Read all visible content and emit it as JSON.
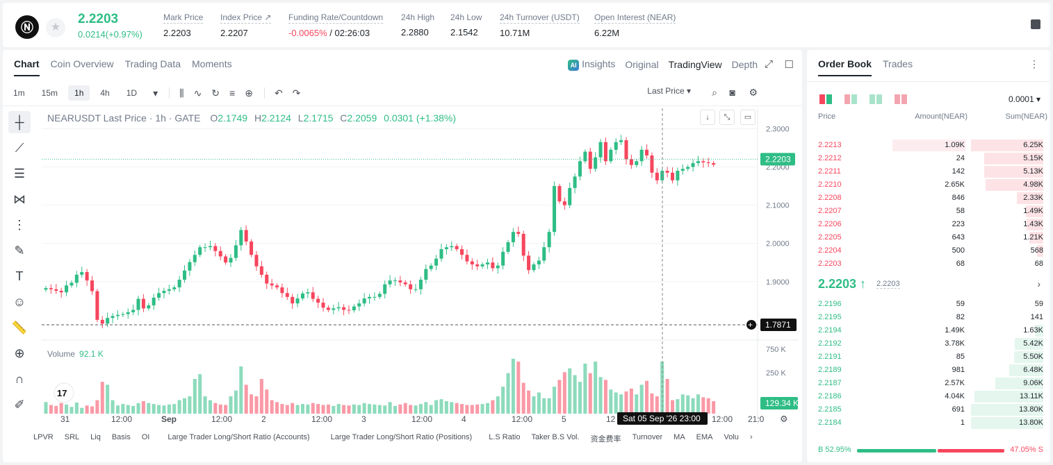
{
  "header": {
    "last_price": "2.2203",
    "change": "0.0214(+0.97%)",
    "stats": [
      {
        "label": "Mark Price",
        "value": "2.2203"
      },
      {
        "label": "Index Price ↗",
        "value": "2.2207"
      },
      {
        "label": "Funding Rate/Countdown",
        "value_neg": "-0.0065%",
        "value": " / 02:26:03"
      },
      {
        "label": "24h High",
        "value": "2.2880"
      },
      {
        "label": "24h Low",
        "value": "2.1542"
      },
      {
        "label": "24h Turnover (USDT)",
        "value": "10.71M"
      },
      {
        "label": "Open Interest (NEAR)",
        "value": "6.22M"
      }
    ]
  },
  "chart_tabs": [
    "Chart",
    "Coin Overview",
    "Trading Data",
    "Moments"
  ],
  "chart_views": [
    "Insights",
    "Original",
    "TradingView",
    "Depth"
  ],
  "timeframes": [
    "1m",
    "15m",
    "1h",
    "4h",
    "1D"
  ],
  "price_type": "Last Price ▾",
  "legend": {
    "symbol": "NEARUSDT Last Price · 1h · GATE",
    "o_label": "O",
    "o": "2.1749",
    "h_label": "H",
    "h": "2.2124",
    "l_label": "L",
    "l": "2.1715",
    "c_label": "C",
    "c": "2.2059",
    "chg": "0.0301 (+1.38%)"
  },
  "volume_legend": {
    "label": "Volume",
    "value": "92.1 K"
  },
  "bottom_indicators": [
    "LPVR",
    "SRL",
    "Liq",
    "Basis",
    "OI",
    "Large Trader Long/Short Ratio (Accounts)",
    "Large Trader Long/Short Ratio (Positions)",
    "L.S Ratio",
    "Taker B.S Vol.",
    "资金费率",
    "Turnover",
    "MA",
    "EMA",
    "Volu"
  ],
  "chart_data": {
    "type": "candlestick",
    "symbol": "NEARUSDT",
    "interval": "1h",
    "y_ticks": [
      "2.3000",
      "2.2000",
      "2.1000",
      "2.0000",
      "1.9000",
      "1.7871"
    ],
    "vol_ticks": [
      "750 K",
      "250 K"
    ],
    "x_ticks": [
      "31",
      "12:00",
      "Sep",
      "12:00",
      "2",
      "12:00",
      "3",
      "12:00",
      "4",
      "12:00",
      "5",
      "12",
      "12:00",
      "21:0"
    ],
    "price_label": "2.2203",
    "crosshair_price": "1.7871",
    "crosshair_time": "Sat 05 Sep '26   23:00",
    "volume_last": "129.34 K",
    "close_path": [
      1.883,
      1.88,
      1.876,
      1.872,
      1.89,
      1.897,
      1.918,
      1.925,
      1.903,
      1.875,
      1.8,
      1.79,
      1.805,
      1.81,
      1.813,
      1.815,
      1.82,
      1.826,
      1.855,
      1.83,
      1.838,
      1.858,
      1.87,
      1.876,
      1.88,
      1.885,
      1.905,
      1.929,
      1.951,
      1.97,
      1.99,
      1.99,
      1.993,
      1.98,
      1.966,
      1.95,
      1.962,
      1.995,
      2.035,
      2.005,
      1.97,
      1.94,
      1.918,
      1.895,
      1.89,
      1.885,
      1.87,
      1.86,
      1.843,
      1.856,
      1.869,
      1.872,
      1.855,
      1.845,
      1.832,
      1.826,
      1.83,
      1.833,
      1.826,
      1.825,
      1.835,
      1.843,
      1.856,
      1.86,
      1.86,
      1.868,
      1.893,
      1.903,
      1.903,
      1.898,
      1.893,
      1.88,
      1.88,
      1.905,
      1.933,
      1.942,
      1.96,
      1.985,
      1.99,
      1.993,
      1.985,
      1.97,
      1.953,
      1.945,
      1.94,
      1.945,
      1.95,
      1.935,
      1.942,
      1.978,
      2.003,
      2.03,
      2.025,
      1.968,
      1.93,
      1.945,
      1.955,
      1.99,
      2.03,
      2.15,
      2.11,
      2.1,
      2.145,
      2.175,
      2.215,
      2.24,
      2.195,
      2.225,
      2.265,
      2.215,
      2.245,
      2.265,
      2.27,
      2.22,
      2.205,
      2.215,
      2.245,
      2.23,
      2.185,
      2.165,
      2.19,
      2.185,
      2.165,
      2.19,
      2.195,
      2.2,
      2.21,
      2.215,
      2.212,
      2.21,
      2.206
    ],
    "volumes_k": [
      120,
      90,
      80,
      110,
      95,
      70,
      115,
      60,
      85,
      75,
      140,
      330,
      300,
      140,
      85,
      100,
      90,
      80,
      110,
      130,
      110,
      100,
      90,
      85,
      95,
      100,
      140,
      160,
      180,
      360,
      410,
      180,
      140,
      110,
      95,
      90,
      180,
      240,
      490,
      300,
      200,
      180,
      360,
      250,
      140,
      120,
      100,
      90,
      110,
      90,
      100,
      95,
      110,
      100,
      90,
      95,
      80,
      100,
      90,
      85,
      95,
      90,
      110,
      100,
      95,
      90,
      85,
      120,
      80,
      95,
      110,
      90,
      85,
      100,
      120,
      90,
      140,
      150,
      130,
      120,
      110,
      100,
      90,
      90,
      95,
      100,
      110,
      140,
      180,
      280,
      420,
      570,
      540,
      320,
      240,
      180,
      220,
      160,
      160,
      280,
      350,
      430,
      470,
      400,
      330,
      520,
      420,
      540,
      380,
      350,
      250,
      220,
      200,
      230,
      260,
      200,
      300,
      340,
      210,
      180,
      540,
      360,
      140,
      150,
      200,
      190,
      160,
      200,
      170,
      160,
      129.34
    ]
  },
  "orderbook": {
    "tabs": [
      "Order Book",
      "Trades"
    ],
    "precision": "0.0001 ▾",
    "columns": [
      "Price",
      "Amount(NEAR)",
      "Sum(NEAR)"
    ],
    "asks": [
      {
        "price": "2.2213",
        "amount": "1.09K",
        "sum": "6.25K",
        "depth": 1.0,
        "amt_depth": 0.34
      },
      {
        "price": "2.2212",
        "amount": "24",
        "sum": "5.15K",
        "depth": 0.82
      },
      {
        "price": "2.2211",
        "amount": "142",
        "sum": "5.13K",
        "depth": 0.82
      },
      {
        "price": "2.2210",
        "amount": "2.65K",
        "sum": "4.98K",
        "depth": 0.8
      },
      {
        "price": "2.2208",
        "amount": "846",
        "sum": "2.33K",
        "depth": 0.37
      },
      {
        "price": "2.2207",
        "amount": "58",
        "sum": "1.49K",
        "depth": 0.24
      },
      {
        "price": "2.2206",
        "amount": "223",
        "sum": "1.43K",
        "depth": 0.23
      },
      {
        "price": "2.2205",
        "amount": "643",
        "sum": "1.21K",
        "depth": 0.19
      },
      {
        "price": "2.2204",
        "amount": "500",
        "sum": "568",
        "depth": 0.09
      },
      {
        "price": "2.2203",
        "amount": "68",
        "sum": "68",
        "depth": 0.0
      }
    ],
    "mid_price": "2.2203 ↑",
    "mark_price": "2.2203",
    "bids": [
      {
        "price": "2.2196",
        "amount": "59",
        "sum": "59",
        "depth": 0.0
      },
      {
        "price": "2.2195",
        "amount": "82",
        "sum": "141",
        "depth": 0.0
      },
      {
        "price": "2.2194",
        "amount": "1.49K",
        "sum": "1.63K",
        "depth": 0.12
      },
      {
        "price": "2.2192",
        "amount": "3.78K",
        "sum": "5.42K",
        "depth": 0.39
      },
      {
        "price": "2.2191",
        "amount": "85",
        "sum": "5.50K",
        "depth": 0.4
      },
      {
        "price": "2.2189",
        "amount": "981",
        "sum": "6.48K",
        "depth": 0.47
      },
      {
        "price": "2.2187",
        "amount": "2.57K",
        "sum": "9.06K",
        "depth": 0.66
      },
      {
        "price": "2.2186",
        "amount": "4.04K",
        "sum": "13.11K",
        "depth": 0.95
      },
      {
        "price": "2.2185",
        "amount": "691",
        "sum": "13.80K",
        "depth": 1.0
      },
      {
        "price": "2.2184",
        "amount": "1",
        "sum": "13.80K",
        "depth": 1.0
      }
    ],
    "buy_ratio": "B 52.95%",
    "sell_ratio": "47.05% S"
  },
  "colors": {
    "up": "#2ebd85",
    "down": "#f6465d"
  }
}
